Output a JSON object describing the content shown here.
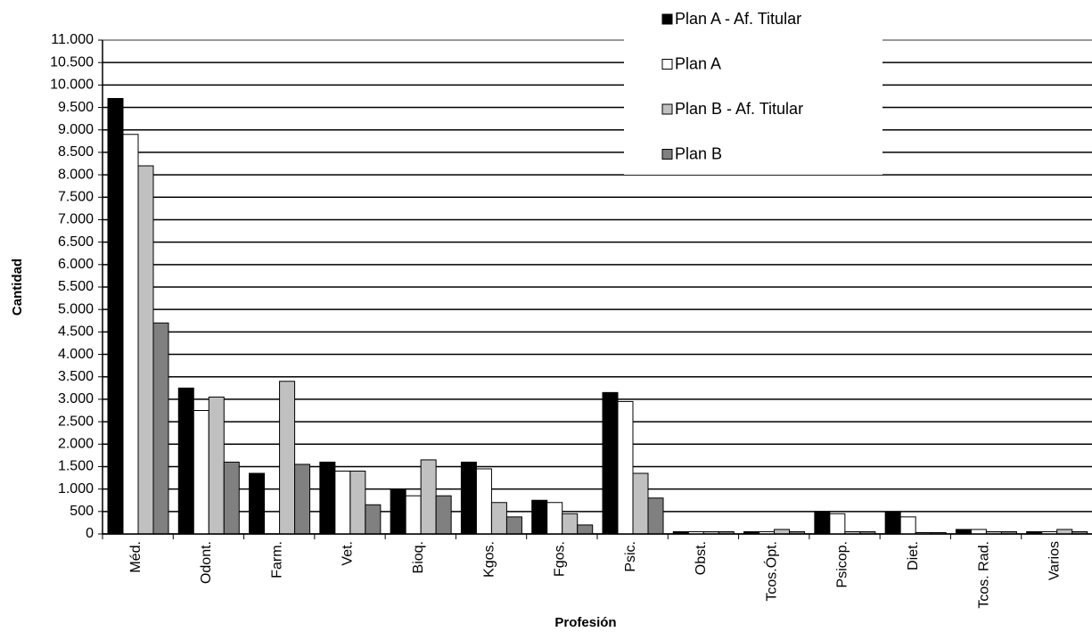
{
  "chart_data": {
    "type": "bar",
    "x_label": "Profesión",
    "y_label": "Cantidad",
    "categories": [
      "Méd.",
      "Odont.",
      "Farm.",
      "Vet.",
      "Bioq.",
      "Kgos.",
      "Fgos.",
      "Psic.",
      "Obst.",
      "Tcos.Ópt.",
      "Psicop.",
      "Diet.",
      "Tcos. Rad.",
      "Varios"
    ],
    "series": [
      {
        "name": "Plan A - Af. Titular",
        "color": "#000000",
        "values": [
          9700,
          3250,
          1350,
          1600,
          1000,
          1600,
          750,
          3150,
          50,
          50,
          500,
          480,
          100,
          50
        ]
      },
      {
        "name": "Plan A",
        "color": "#ffffff",
        "values": [
          8900,
          2750,
          0,
          1400,
          850,
          1450,
          700,
          2950,
          50,
          50,
          450,
          380,
          100,
          50
        ]
      },
      {
        "name": "Plan B - Af. Titular",
        "color": "#c0c0c0",
        "values": [
          8200,
          3050,
          3400,
          1400,
          1650,
          700,
          450,
          1350,
          50,
          100,
          50,
          30,
          50,
          100
        ]
      },
      {
        "name": "Plan B",
        "color": "#808080",
        "values": [
          4700,
          1600,
          1550,
          650,
          850,
          380,
          200,
          800,
          50,
          50,
          50,
          30,
          50,
          50
        ]
      }
    ],
    "ylim": [
      0,
      11000
    ],
    "yticks": [
      0,
      500,
      {
        "value": 1000,
        "label": "1.000"
      },
      {
        "value": 1500,
        "label": "1.500"
      },
      {
        "value": 2000,
        "label": "2.000"
      },
      {
        "value": 2500,
        "label": "2.500"
      },
      {
        "value": 3000,
        "label": "3.000"
      },
      {
        "value": 3500,
        "label": "3.500"
      },
      {
        "value": 4000,
        "label": "4.000"
      },
      {
        "value": 4500,
        "label": "4.500"
      },
      {
        "value": 5000,
        "label": "5.000"
      },
      {
        "value": 5500,
        "label": "5.500"
      },
      {
        "value": 6000,
        "label": "6.000"
      },
      {
        "value": 6500,
        "label": "6.500"
      },
      {
        "value": 7000,
        "label": "7.000"
      },
      {
        "value": 7500,
        "label": "7.500"
      },
      {
        "value": 8000,
        "label": "8.000"
      },
      {
        "value": 8500,
        "label": "8.500"
      },
      {
        "value": 9000,
        "label": "9.000"
      },
      {
        "value": 9500,
        "label": "9.500"
      },
      {
        "value": 10000,
        "label": "10.000"
      },
      {
        "value": 10500,
        "label": "10.500"
      },
      {
        "value": 11000,
        "label": "11.000"
      }
    ],
    "grid": true
  }
}
